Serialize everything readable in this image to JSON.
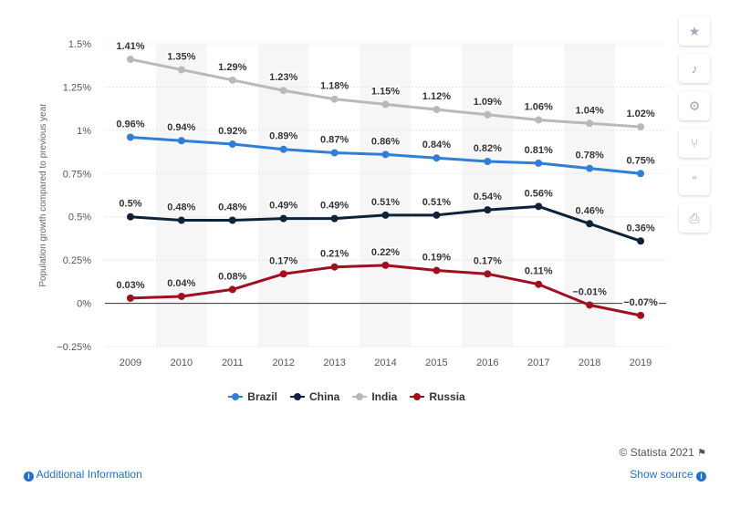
{
  "chart_data": {
    "type": "line",
    "ylabel": "Population growth compared to previous year",
    "x": [
      "2009",
      "2010",
      "2011",
      "2012",
      "2013",
      "2014",
      "2015",
      "2016",
      "2017",
      "2018",
      "2019"
    ],
    "ylim": [
      -0.25,
      1.5
    ],
    "yticks": [
      "1.5%",
      "1.25%",
      "1%",
      "0.75%",
      "0.5%",
      "0.25%",
      "0%",
      "−0.25%"
    ],
    "ytick_values": [
      1.5,
      1.25,
      1,
      0.75,
      0.5,
      0.25,
      0,
      -0.25
    ],
    "series": [
      {
        "name": "Brazil",
        "color": "#2f7ed8",
        "values": [
          0.96,
          0.94,
          0.92,
          0.89,
          0.87,
          0.86,
          0.84,
          0.82,
          0.81,
          0.78,
          0.75
        ],
        "labels": [
          "0.96%",
          "0.94%",
          "0.92%",
          "0.89%",
          "0.87%",
          "0.86%",
          "0.84%",
          "0.82%",
          "0.81%",
          "0.78%",
          "0.75%"
        ]
      },
      {
        "name": "China",
        "color": "#0d233a",
        "values": [
          0.5,
          0.48,
          0.48,
          0.49,
          0.49,
          0.51,
          0.51,
          0.54,
          0.56,
          0.46,
          0.36
        ],
        "labels": [
          "0.5%",
          "0.48%",
          "0.48%",
          "0.49%",
          "0.49%",
          "0.51%",
          "0.51%",
          "0.54%",
          "0.56%",
          "0.46%",
          "0.36%"
        ]
      },
      {
        "name": "India",
        "color": "#b9b9b9",
        "values": [
          1.41,
          1.35,
          1.29,
          1.23,
          1.18,
          1.15,
          1.12,
          1.09,
          1.06,
          1.04,
          1.02
        ],
        "labels": [
          "1.41%",
          "1.35%",
          "1.29%",
          "1.23%",
          "1.18%",
          "1.15%",
          "1.12%",
          "1.09%",
          "1.06%",
          "1.04%",
          "1.02%"
        ]
      },
      {
        "name": "Russia",
        "color": "#a10f1f",
        "values": [
          0.03,
          0.04,
          0.08,
          0.17,
          0.21,
          0.22,
          0.19,
          0.17,
          0.11,
          -0.01,
          -0.07
        ],
        "labels": [
          "0.03%",
          "0.04%",
          "0.08%",
          "0.17%",
          "0.21%",
          "0.22%",
          "0.19%",
          "0.17%",
          "0.11%",
          "−0.01%",
          "−0.07%"
        ]
      }
    ],
    "legend_position": "bottom-center",
    "grid": true
  },
  "sidebar": {
    "buttons": [
      {
        "name": "star-icon",
        "glyph": "★"
      },
      {
        "name": "bell-icon",
        "glyph": "♪"
      },
      {
        "name": "gear-icon",
        "glyph": "⚙"
      },
      {
        "name": "share-icon",
        "glyph": "⑂"
      },
      {
        "name": "quote-icon",
        "glyph": "”"
      },
      {
        "name": "print-icon",
        "glyph": "⎙"
      }
    ]
  },
  "footer": {
    "credit": "© Statista 2021",
    "additional_info": "Additional Information",
    "show_source": "Show source"
  }
}
